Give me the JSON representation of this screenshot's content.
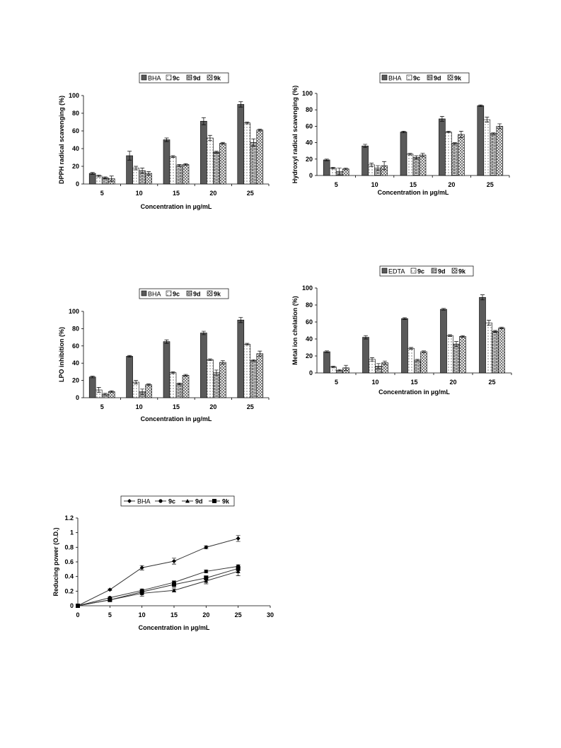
{
  "chart_data": [
    {
      "id": "dpph",
      "type": "bar",
      "categories": [
        "5",
        "10",
        "15",
        "20",
        "25"
      ],
      "series": [
        {
          "name": "BHA",
          "values": [
            12,
            32,
            50,
            71,
            90
          ],
          "errors": [
            1,
            5,
            2,
            4,
            3
          ],
          "pattern": "dark"
        },
        {
          "name": "9c",
          "values": [
            9,
            18,
            31,
            52,
            69
          ],
          "errors": [
            1,
            2,
            1,
            3,
            1
          ],
          "pattern": "dots"
        },
        {
          "name": "9d",
          "values": [
            7,
            15,
            21,
            36,
            47
          ],
          "errors": [
            1,
            3,
            1,
            1,
            4
          ],
          "pattern": "bricks"
        },
        {
          "name": "9k",
          "values": [
            6,
            12,
            22,
            46,
            61
          ],
          "errors": [
            3,
            2,
            1,
            1,
            1
          ],
          "pattern": "zigzag"
        }
      ],
      "xlabel": "Concentration in µg/mL",
      "ylabel": "DPPH radical scavenging (%)",
      "ylim": [
        0,
        100
      ],
      "yticks": [
        0,
        20,
        40,
        60,
        80,
        100
      ]
    },
    {
      "id": "hydroxyl",
      "type": "bar",
      "categories": [
        "5",
        "10",
        "15",
        "20",
        "25"
      ],
      "series": [
        {
          "name": "BHA",
          "values": [
            19,
            36,
            53,
            69,
            85
          ],
          "errors": [
            1,
            2,
            1,
            3,
            1
          ],
          "pattern": "dark"
        },
        {
          "name": "9c",
          "values": [
            9,
            13,
            26,
            53,
            68
          ],
          "errors": [
            1,
            2,
            1,
            1,
            3
          ],
          "pattern": "dots"
        },
        {
          "name": "9d",
          "values": [
            5,
            9,
            22,
            39,
            51
          ],
          "errors": [
            4,
            3,
            2,
            1,
            1
          ],
          "pattern": "bricks"
        },
        {
          "name": "9k",
          "values": [
            8,
            12,
            25,
            50,
            60
          ],
          "errors": [
            1,
            5,
            2,
            4,
            3
          ],
          "pattern": "zigzag"
        }
      ],
      "xlabel": "Concentration in µg/mL",
      "ylabel": "Hydroxyl radical scavenging (%)",
      "ylim": [
        0,
        100
      ],
      "yticks": [
        0,
        20,
        40,
        60,
        80,
        100
      ]
    },
    {
      "id": "lpo",
      "type": "bar",
      "categories": [
        "5",
        "10",
        "15",
        "20",
        "25"
      ],
      "series": [
        {
          "name": "BHA",
          "values": [
            24,
            48,
            65,
            75,
            90
          ],
          "errors": [
            1,
            1,
            2,
            2,
            3
          ],
          "pattern": "dark"
        },
        {
          "name": "9c",
          "values": [
            9,
            18,
            29,
            44,
            62
          ],
          "errors": [
            3,
            2,
            1,
            1,
            1
          ],
          "pattern": "dots"
        },
        {
          "name": "9d",
          "values": [
            4,
            7,
            16,
            29,
            43
          ],
          "errors": [
            1,
            3,
            1,
            3,
            1
          ],
          "pattern": "bricks"
        },
        {
          "name": "9k",
          "values": [
            7,
            15,
            26,
            41,
            51
          ],
          "errors": [
            1,
            1,
            1,
            2,
            3
          ],
          "pattern": "zigzag"
        }
      ],
      "xlabel": "Concentration in µg/mL",
      "ylabel": "LPO inhibition (%)",
      "ylim": [
        0,
        100
      ],
      "yticks": [
        0,
        20,
        40,
        60,
        80,
        100
      ]
    },
    {
      "id": "metal",
      "type": "bar",
      "categories": [
        "5",
        "10",
        "15",
        "20",
        "25"
      ],
      "series": [
        {
          "name": "EDTA",
          "values": [
            25,
            42,
            64,
            75,
            89
          ],
          "errors": [
            1,
            2,
            1,
            1,
            3
          ],
          "pattern": "dark"
        },
        {
          "name": "9c",
          "values": [
            7,
            16,
            29,
            44,
            59
          ],
          "errors": [
            1,
            2,
            1,
            1,
            3
          ],
          "pattern": "dots"
        },
        {
          "name": "9d",
          "values": [
            3,
            8,
            15,
            34,
            49
          ],
          "errors": [
            1,
            3,
            1,
            3,
            1
          ],
          "pattern": "bricks"
        },
        {
          "name": "9k",
          "values": [
            6,
            12,
            25,
            43,
            53
          ],
          "errors": [
            3,
            2,
            1,
            1,
            1
          ],
          "pattern": "zigzag"
        }
      ],
      "xlabel": "Concentration in µg/mL",
      "ylabel": "Metal ion chelation (%)",
      "ylim": [
        0,
        100
      ],
      "yticks": [
        0,
        20,
        40,
        60,
        80,
        100
      ]
    },
    {
      "id": "reducing",
      "type": "line",
      "x": [
        0,
        5,
        10,
        15,
        20,
        25
      ],
      "series": [
        {
          "name": "BHA",
          "marker": "diamond",
          "values": [
            0,
            0.22,
            0.52,
            0.61,
            0.8,
            0.92
          ],
          "errors": [
            0,
            0.01,
            0.03,
            0.04,
            0.02,
            0.04
          ]
        },
        {
          "name": "9c",
          "marker": "circle",
          "values": [
            0,
            0.11,
            0.21,
            0.32,
            0.47,
            0.54
          ],
          "errors": [
            0,
            0.01,
            0.02,
            0.02,
            0.02,
            0.02
          ]
        },
        {
          "name": "9d",
          "marker": "triangle",
          "values": [
            0,
            0.08,
            0.17,
            0.21,
            0.34,
            0.47
          ],
          "errors": [
            0,
            0.01,
            0.04,
            0.02,
            0.04,
            0.06
          ]
        },
        {
          "name": "9k",
          "marker": "square",
          "values": [
            0,
            0.08,
            0.19,
            0.29,
            0.38,
            0.51
          ],
          "errors": [
            0,
            0.01,
            0.02,
            0.04,
            0.03,
            0.03
          ]
        }
      ],
      "xlabel": "Concentration in µg/mL",
      "ylabel": "Reducing power (O.D.)",
      "xlim": [
        0,
        30
      ],
      "xticks": [
        0,
        5,
        10,
        15,
        20,
        25,
        30
      ],
      "ylim": [
        0,
        1.2
      ],
      "yticks": [
        0,
        0.2,
        0.4,
        0.6,
        0.8,
        1,
        1.2
      ],
      "ytick_labels": [
        "0",
        "0.2",
        "0.4",
        "0.6",
        "0.8",
        "1",
        "1.2"
      ]
    }
  ]
}
